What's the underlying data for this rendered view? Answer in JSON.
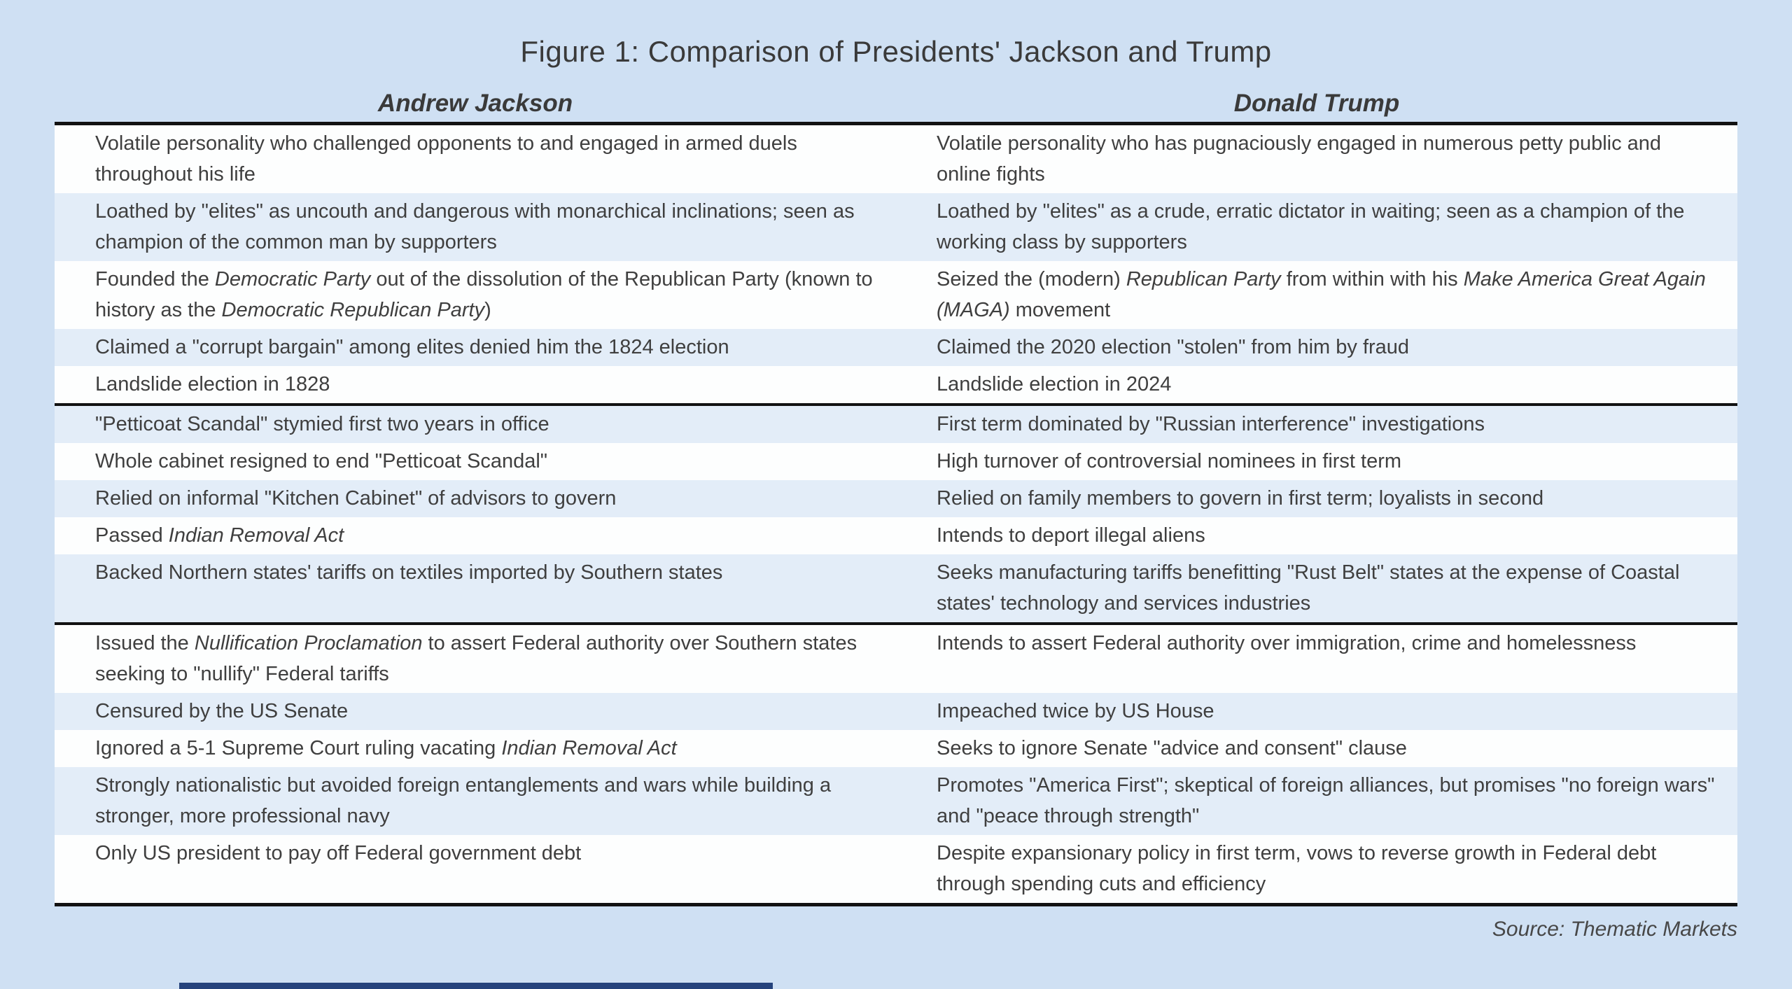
{
  "page": {
    "title": "Figure 1: Comparison of Presidents' Jackson and Trump",
    "source": "Source: Thematic Markets",
    "background_color": "#cfe0f3"
  },
  "table": {
    "columns": [
      "Andrew Jackson",
      "Donald Trump"
    ],
    "row_colors": {
      "white": "#fdfefe",
      "blue": "#e3edf8"
    },
    "border_color": "#121212",
    "sections": [
      {
        "rows": [
          {
            "jackson": [
              {
                "t": "Volatile personality who challenged opponents to and engaged in armed duels throughout his life"
              }
            ],
            "trump": [
              {
                "t": "Volatile personality who has pugnaciously engaged in numerous petty public and online fights"
              }
            ]
          },
          {
            "jackson": [
              {
                "t": "Loathed by \"elites\" as uncouth and dangerous with monarchical inclinations; seen as champion of the common man by supporters"
              }
            ],
            "trump": [
              {
                "t": "Loathed by \"elites\" as a crude, erratic dictator in waiting; seen as a champion of the working class by supporters"
              }
            ]
          },
          {
            "jackson": [
              {
                "t": "Founded the "
              },
              {
                "t": "Democratic Party",
                "i": true
              },
              {
                "t": " out of the dissolution of the Republican Party (known to history as the "
              },
              {
                "t": "Democratic Republican Party",
                "i": true
              },
              {
                "t": ")"
              }
            ],
            "trump": [
              {
                "t": "Seized the (modern) "
              },
              {
                "t": "Republican Party",
                "i": true
              },
              {
                "t": " from within with his "
              },
              {
                "t": "Make America Great Again (MAGA)",
                "i": true
              },
              {
                "t": " movement"
              }
            ]
          },
          {
            "jackson": [
              {
                "t": "Claimed a \"corrupt bargain\" among elites denied him the 1824 election"
              }
            ],
            "trump": [
              {
                "t": "Claimed the 2020 election \"stolen\" from him by fraud"
              }
            ]
          },
          {
            "jackson": [
              {
                "t": "Landslide election in 1828"
              }
            ],
            "trump": [
              {
                "t": "Landslide election in 2024"
              }
            ]
          }
        ]
      },
      {
        "rows": [
          {
            "jackson": [
              {
                "t": "\"Petticoat Scandal\" stymied first two years in office"
              }
            ],
            "trump": [
              {
                "t": "First term dominated by \"Russian interference\" investigations"
              }
            ]
          },
          {
            "jackson": [
              {
                "t": "Whole cabinet resigned to end \"Petticoat Scandal\""
              }
            ],
            "trump": [
              {
                "t": "High turnover of controversial nominees in first term"
              }
            ]
          },
          {
            "jackson": [
              {
                "t": "Relied on informal \"Kitchen Cabinet\" of advisors to govern"
              }
            ],
            "trump": [
              {
                "t": "Relied on family members to govern in first term; loyalists in second"
              }
            ]
          },
          {
            "jackson": [
              {
                "t": "Passed "
              },
              {
                "t": "Indian Removal Act",
                "i": true
              }
            ],
            "trump": [
              {
                "t": "Intends to deport illegal aliens"
              }
            ]
          },
          {
            "jackson": [
              {
                "t": "Backed Northern states' tariffs on textiles imported by Southern states"
              }
            ],
            "trump": [
              {
                "t": "Seeks manufacturing tariffs benefitting \"Rust Belt\" states at the expense of Coastal states' technology and services industries"
              }
            ]
          }
        ]
      },
      {
        "rows": [
          {
            "jackson": [
              {
                "t": "Issued the "
              },
              {
                "t": "Nullification Proclamation",
                "i": true
              },
              {
                "t": " to assert Federal authority over Southern states seeking to \"nullify\" Federal tariffs"
              }
            ],
            "trump": [
              {
                "t": "Intends to assert Federal authority over immigration, crime and homelessness"
              }
            ]
          },
          {
            "jackson": [
              {
                "t": "Censured by the US Senate"
              }
            ],
            "trump": [
              {
                "t": "Impeached twice by US House"
              }
            ]
          },
          {
            "jackson": [
              {
                "t": "Ignored a 5-1 Supreme Court ruling vacating "
              },
              {
                "t": "Indian Removal Act",
                "i": true
              }
            ],
            "trump": [
              {
                "t": "Seeks to ignore Senate \"advice and consent\" clause"
              }
            ]
          },
          {
            "jackson": [
              {
                "t": "Strongly nationalistic but avoided foreign entanglements and wars while building a stronger, more professional navy"
              }
            ],
            "trump": [
              {
                "t": "Promotes \"America First\"; skeptical of foreign alliances, but promises \"no foreign wars\" and \"peace through strength\""
              }
            ]
          },
          {
            "jackson": [
              {
                "t": "Only US president to pay off Federal government debt"
              }
            ],
            "trump": [
              {
                "t": "Despite expansionary policy in first term, vows to reverse growth in Federal debt through spending cuts and efficiency"
              }
            ]
          }
        ]
      }
    ]
  }
}
